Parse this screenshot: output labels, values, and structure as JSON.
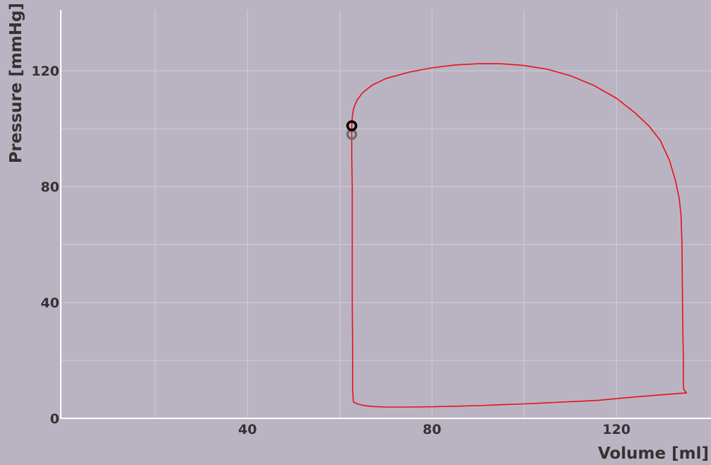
{
  "chart_data": {
    "type": "line",
    "title": "",
    "xlabel": "Volume [ml]",
    "ylabel": "Pressure [mmHg]",
    "xlim": [
      -0.5,
      140.5
    ],
    "ylim": [
      0,
      141
    ],
    "x_ticks": [
      {
        "value": 40,
        "label": "40"
      },
      {
        "value": 80,
        "label": "80"
      },
      {
        "value": 120,
        "label": "120"
      }
    ],
    "y_ticks": [
      {
        "value": 0,
        "label": "0"
      },
      {
        "value": 40,
        "label": "40"
      },
      {
        "value": 80,
        "label": "80"
      },
      {
        "value": 120,
        "label": "120"
      }
    ],
    "x_minor_grid": [
      20,
      60,
      100
    ],
    "y_minor_grid": [
      20,
      60,
      100
    ],
    "grid": true,
    "legend": "none",
    "series": [
      {
        "color": "#e8101a",
        "x": [
          62.6,
          62.7,
          63.0,
          63.8,
          65.0,
          67.0,
          70.0,
          75.0,
          80.0,
          85.0,
          90.0,
          95.0,
          100.0,
          105.0,
          110.0,
          115.0,
          120.0,
          124.0,
          127.0,
          129.5,
          131.5,
          132.8,
          133.6,
          134.0,
          134.2,
          134.3,
          134.4,
          134.5,
          134.5,
          134.6,
          135.2,
          132.0,
          128.0,
          124.0,
          120.0,
          116.0,
          112.0,
          108.0,
          104.0,
          100.0,
          95.0,
          90.0,
          85.0,
          80.0,
          75.0,
          70.0,
          67.0,
          65.0,
          63.8,
          63.0,
          62.9,
          62.8,
          62.8,
          62.7,
          62.7,
          62.7,
          62.6,
          62.6,
          62.6
        ],
        "y": [
          101.0,
          104.0,
          107.0,
          110.0,
          112.5,
          115.0,
          117.3,
          119.5,
          121.0,
          122.0,
          122.4,
          122.4,
          121.8,
          120.5,
          118.3,
          115.0,
          110.5,
          105.5,
          101.0,
          96.0,
          89.0,
          82.0,
          76.0,
          70.0,
          60.0,
          45.0,
          30.0,
          20.0,
          12.0,
          10.0,
          8.8,
          8.4,
          7.9,
          7.4,
          6.8,
          6.2,
          5.9,
          5.6,
          5.3,
          5.0,
          4.7,
          4.4,
          4.2,
          4.0,
          3.9,
          3.9,
          4.1,
          4.5,
          5.0,
          5.6,
          6.5,
          10.0,
          20.0,
          40.0,
          60.0,
          80.0,
          90.0,
          98.0,
          101.0
        ]
      }
    ],
    "markers": [
      {
        "x": 62.6,
        "y": 98.0,
        "style": "ring",
        "color": "#6e6e6e"
      },
      {
        "x": 62.6,
        "y": 101.0,
        "style": "ring",
        "color": "#000000"
      }
    ]
  }
}
